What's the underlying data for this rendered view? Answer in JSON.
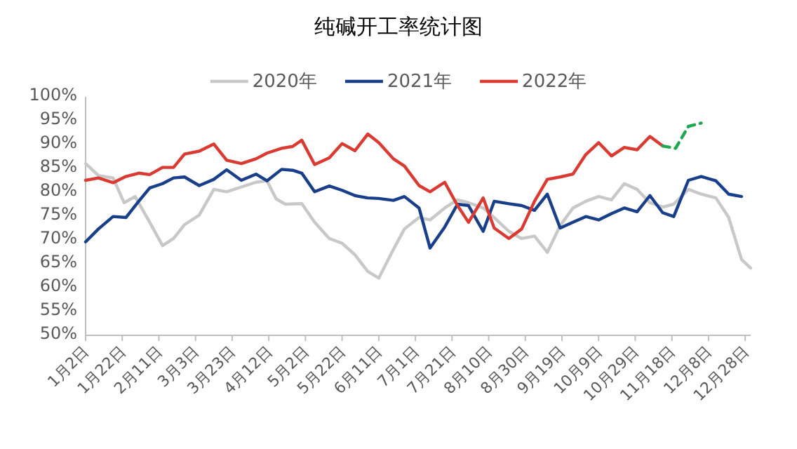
{
  "chart_data": {
    "type": "line",
    "title": "纯碱开工率统计图",
    "legend": "top",
    "grid": false,
    "marker": "none",
    "xlim": [
      "--01-02",
      "--12-31"
    ],
    "xticks": [
      {
        "value": "--01-02",
        "label": "1月2日"
      },
      {
        "value": "--01-22",
        "label": "1月22日"
      },
      {
        "value": "--02-11",
        "label": "2月11日"
      },
      {
        "value": "--03-03",
        "label": "3月3日"
      },
      {
        "value": "--03-23",
        "label": "3月23日"
      },
      {
        "value": "--04-12",
        "label": "4月12日"
      },
      {
        "value": "--05-02",
        "label": "5月2日"
      },
      {
        "value": "--05-22",
        "label": "5月22日"
      },
      {
        "value": "--06-11",
        "label": "6月11日"
      },
      {
        "value": "--07-01",
        "label": "7月1日"
      },
      {
        "value": "--07-21",
        "label": "7月21日"
      },
      {
        "value": "--08-10",
        "label": "8月10日"
      },
      {
        "value": "--08-30",
        "label": "8月30日"
      },
      {
        "value": "--09-19",
        "label": "9月19日"
      },
      {
        "value": "--10-09",
        "label": "10月9日"
      },
      {
        "value": "--10-29",
        "label": "10月29日"
      },
      {
        "value": "--11-18",
        "label": "11月18日"
      },
      {
        "value": "--12-08",
        "label": "12月8日"
      },
      {
        "value": "--12-28",
        "label": "12月28日"
      }
    ],
    "ylim": [
      50,
      100
    ],
    "yticks": [
      {
        "value": 50,
        "label": "50%"
      },
      {
        "value": 55,
        "label": "55%"
      },
      {
        "value": 60,
        "label": "60%"
      },
      {
        "value": 65,
        "label": "65%"
      },
      {
        "value": 70,
        "label": "70%"
      },
      {
        "value": 75,
        "label": "75%"
      },
      {
        "value": 80,
        "label": "80%"
      },
      {
        "value": 85,
        "label": "85%"
      },
      {
        "value": 90,
        "label": "90%"
      },
      {
        "value": 95,
        "label": "95%"
      },
      {
        "value": 100,
        "label": "100%"
      }
    ],
    "series": [
      {
        "name": "2020年",
        "color": "#c8c8c8",
        "line_style": "solid",
        "x": [
          "--01-02",
          "--01-09",
          "--01-17",
          "--01-23",
          "--01-29",
          "--02-06",
          "--02-13",
          "--02-19",
          "--02-25",
          "--03-05",
          "--03-13",
          "--03-20",
          "--03-28",
          "--04-05",
          "--04-11",
          "--04-16",
          "--04-21",
          "--04-30",
          "--05-07",
          "--05-15",
          "--05-22",
          "--05-29",
          "--06-05",
          "--06-11",
          "--06-19",
          "--06-25",
          "--07-03",
          "--07-09",
          "--07-17",
          "--07-24",
          "--07-30",
          "--08-07",
          "--08-13",
          "--08-21",
          "--08-28",
          "--09-04",
          "--09-11",
          "--09-18",
          "--09-25",
          "--10-02",
          "--10-09",
          "--10-16",
          "--10-23",
          "--10-30",
          "--11-06",
          "--11-13",
          "--11-19",
          "--11-27",
          "--12-04",
          "--12-12",
          "--12-19",
          "--12-26",
          "--12-31"
        ],
        "values": [
          86,
          83.5,
          83,
          77.8,
          79.1,
          73.7,
          68.8,
          70.3,
          73.2,
          75.2,
          80.6,
          80.1,
          81.1,
          82.1,
          82.4,
          78.6,
          77.5,
          77.6,
          73.7,
          70.3,
          69.3,
          66.9,
          63.4,
          62,
          68,
          72.3,
          74.7,
          74.2,
          76.7,
          78.4,
          77.8,
          76.7,
          74.7,
          71.8,
          70.3,
          70.8,
          67.4,
          73,
          76.7,
          78.1,
          79.1,
          78.4,
          81.8,
          80.6,
          77.8,
          76.9,
          77.5,
          80.6,
          79.6,
          78.8,
          74.7,
          65.9,
          64.1
        ]
      },
      {
        "name": "2021年",
        "color": "#1a3f8a",
        "line_style": "solid",
        "x": [
          "--01-02",
          "--01-09",
          "--01-17",
          "--01-24",
          "--01-31",
          "--02-06",
          "--02-13",
          "--02-19",
          "--02-25",
          "--03-05",
          "--03-13",
          "--03-20",
          "--03-28",
          "--04-05",
          "--04-11",
          "--04-19",
          "--04-25",
          "--04-30",
          "--05-07",
          "--05-15",
          "--05-22",
          "--05-29",
          "--06-05",
          "--06-11",
          "--06-19",
          "--06-25",
          "--07-03",
          "--07-09",
          "--07-17",
          "--07-24",
          "--07-30",
          "--08-07",
          "--08-13",
          "--08-21",
          "--08-28",
          "--09-04",
          "--09-11",
          "--09-18",
          "--09-25",
          "--10-02",
          "--10-09",
          "--10-16",
          "--10-23",
          "--10-30",
          "--11-06",
          "--11-13",
          "--11-19",
          "--11-27",
          "--12-04",
          "--12-12",
          "--12-19",
          "--12-26"
        ],
        "values": [
          69.6,
          72.3,
          74.9,
          74.7,
          78.1,
          80.9,
          81.8,
          83,
          83.2,
          81.4,
          82.7,
          84.7,
          82.5,
          83.8,
          82.4,
          84.8,
          84.6,
          84,
          80.1,
          81.3,
          80.4,
          79.3,
          78.8,
          78.7,
          78.3,
          79.1,
          76.7,
          68.3,
          72.7,
          77.5,
          77.2,
          71.8,
          78.1,
          77.6,
          77.2,
          76.2,
          79.6,
          72.5,
          73.7,
          74.9,
          74.2,
          75.5,
          76.7,
          75.9,
          79.3,
          75.7,
          74.9,
          82.5,
          83.3,
          82.4,
          79.6,
          79.1
        ]
      },
      {
        "name": "2022年",
        "color": "#d93a32",
        "line_style": "solid",
        "x": [
          "--01-02",
          "--01-09",
          "--01-17",
          "--01-24",
          "--01-31",
          "--02-06",
          "--02-13",
          "--02-19",
          "--02-25",
          "--03-05",
          "--03-13",
          "--03-20",
          "--03-28",
          "--04-05",
          "--04-11",
          "--04-19",
          "--04-25",
          "--04-30",
          "--05-07",
          "--05-15",
          "--05-22",
          "--05-29",
          "--06-05",
          "--06-11",
          "--06-19",
          "--06-25",
          "--07-03",
          "--07-09",
          "--07-17",
          "--07-24",
          "--07-30",
          "--08-07",
          "--08-13",
          "--08-21",
          "--08-28",
          "--09-04",
          "--09-11",
          "--09-18",
          "--09-25",
          "--10-02",
          "--10-09",
          "--10-16",
          "--10-23",
          "--10-30",
          "--11-06",
          "--11-13"
        ],
        "values": [
          82.5,
          83,
          82,
          83.3,
          84,
          83.7,
          85.2,
          85.2,
          88,
          88.6,
          90.1,
          86.7,
          86,
          87,
          88.2,
          89.2,
          89.6,
          90.9,
          85.8,
          87.2,
          90.2,
          88.7,
          92.2,
          90.4,
          87,
          85.5,
          81.4,
          80.1,
          82.1,
          77.2,
          73.7,
          78.8,
          72.5,
          70.3,
          72.3,
          78.1,
          82.7,
          83.2,
          83.8,
          87.9,
          90.4,
          87.6,
          89.4,
          88.9,
          91.7,
          89.7
        ]
      },
      {
        "color": "#1fa84f",
        "line_style": "dashed",
        "x": [
          "--11-13",
          "--11-20",
          "--11-27",
          "--12-04"
        ],
        "values": [
          89.7,
          89.2,
          93.8,
          94.5
        ]
      }
    ]
  }
}
